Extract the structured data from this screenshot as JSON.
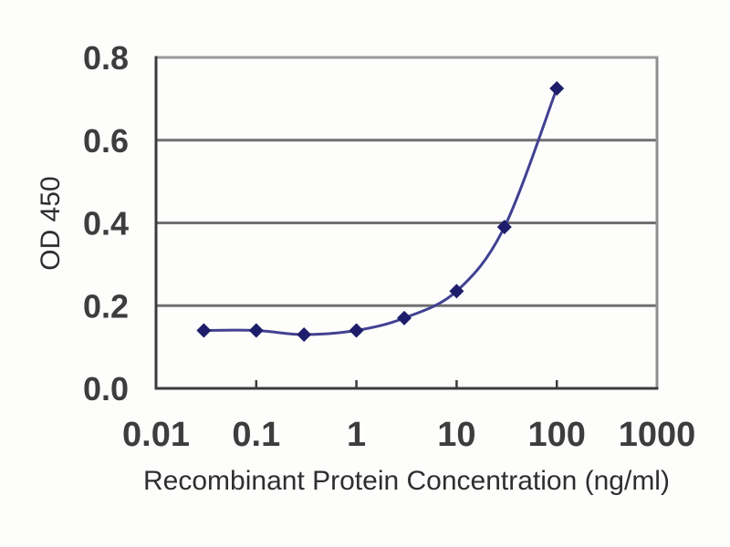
{
  "chart_data": {
    "type": "line",
    "title": "",
    "xlabel": "Recombinant Protein Concentration (ng/ml)",
    "ylabel": "OD 450",
    "x_scale": "log",
    "xlim": [
      0.01,
      1000
    ],
    "ylim": [
      0.0,
      0.8
    ],
    "x": [
      0.03,
      0.1,
      0.3,
      1,
      3,
      10,
      30,
      100
    ],
    "series": [
      {
        "values": [
          0.14,
          0.14,
          0.13,
          0.14,
          0.17,
          0.235,
          0.39,
          0.725
        ],
        "line_color": "#414192",
        "marker_color": "#1d1d6b",
        "marker": "diamond",
        "smooth": true
      }
    ],
    "x_ticks": {
      "values": [
        0.01,
        0.1,
        1,
        10,
        100,
        1000
      ],
      "labels": [
        "0.01",
        "0.1",
        "1",
        "10",
        "100",
        "1000"
      ]
    },
    "y_ticks": {
      "values": [
        0.0,
        0.2,
        0.4,
        0.6,
        0.8
      ],
      "labels": [
        "0.0",
        "0.2",
        "0.4",
        "0.6",
        "0.8"
      ]
    },
    "grid": "horizontal",
    "legend": "none",
    "colors": {
      "gridline": "#707070",
      "axis": "#3b3b3b",
      "border_top": "#9a9a9a",
      "border_right": "#8f8f8f",
      "tick_text": "#3d3d3d",
      "title_text": "#2e2e2e",
      "background": "#fdfdfc"
    }
  }
}
